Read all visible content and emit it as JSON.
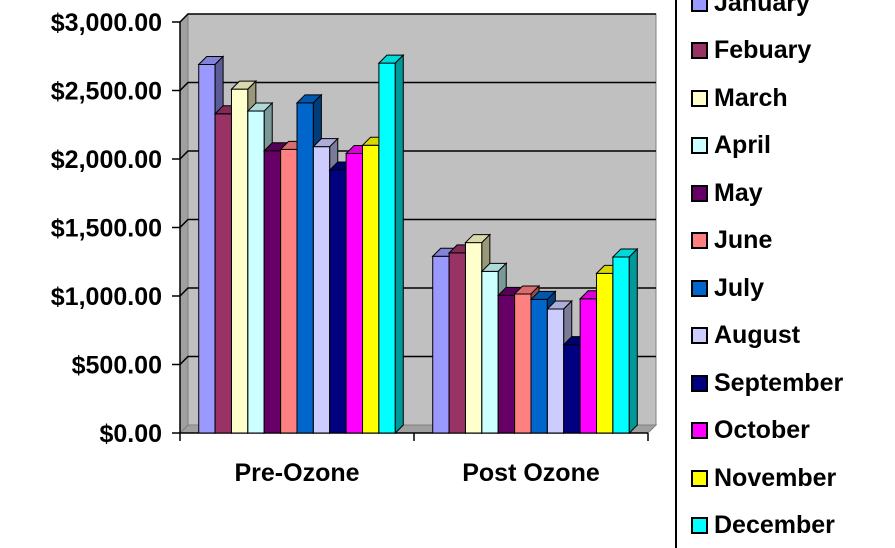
{
  "chart_data": {
    "type": "bar",
    "categories": [
      "Pre-Ozone",
      "Post Ozone"
    ],
    "series": [
      {
        "name": "January",
        "color": "#9999ff",
        "values": [
          2690,
          1290
        ]
      },
      {
        "name": "Febuary",
        "color": "#993366",
        "values": [
          2330,
          1315
        ]
      },
      {
        "name": "March",
        "color": "#ffffcc",
        "values": [
          2510,
          1390
        ]
      },
      {
        "name": "April",
        "color": "#ccffff",
        "values": [
          2350,
          1180
        ]
      },
      {
        "name": "May",
        "color": "#660066",
        "values": [
          2060,
          1005
        ]
      },
      {
        "name": "June",
        "color": "#ff8080",
        "values": [
          2070,
          1015
        ]
      },
      {
        "name": "July",
        "color": "#0066cc",
        "values": [
          2410,
          975
        ]
      },
      {
        "name": "August",
        "color": "#ccccff",
        "values": [
          2090,
          905
        ]
      },
      {
        "name": "September",
        "color": "#000080",
        "values": [
          1920,
          645
        ]
      },
      {
        "name": "October",
        "color": "#ff00ff",
        "values": [
          2040,
          980
        ]
      },
      {
        "name": "November",
        "color": "#ffff00",
        "values": [
          2100,
          1165
        ]
      },
      {
        "name": "December",
        "color": "#00ffff",
        "values": [
          2700,
          1285
        ]
      }
    ],
    "y_ticks": [
      "$0.00",
      "$500.00",
      "$1,000.00",
      "$1,500.00",
      "$2,000.00",
      "$2,500.00",
      "$3,000.00"
    ],
    "ylim": [
      0,
      3000
    ],
    "grid": true,
    "legend_position": "right",
    "plot_background": "#c0c0c0"
  }
}
